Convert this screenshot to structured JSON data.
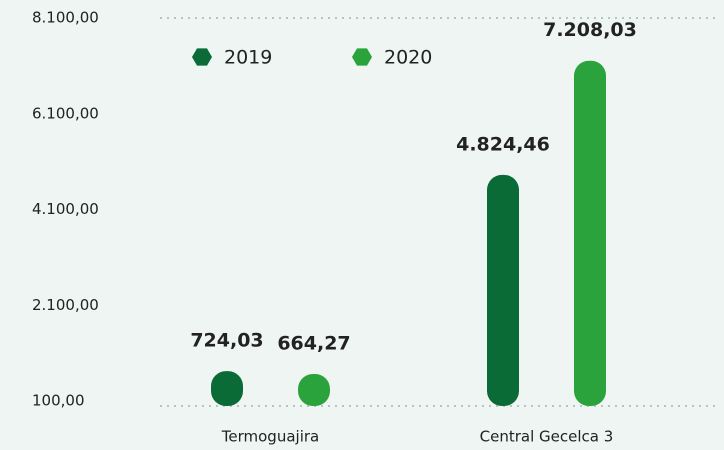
{
  "chart_data": {
    "type": "bar",
    "categories": [
      "Termoguajira",
      "Central Gecelca 3"
    ],
    "series": [
      {
        "name": "2019",
        "color": "#0b6b37",
        "values": [
          724.03,
          4824.46
        ],
        "value_labels": [
          "724,03",
          "4.824,46"
        ]
      },
      {
        "name": "2020",
        "color": "#2ba33c",
        "values": [
          664.27,
          7208.03
        ],
        "value_labels": [
          "664,27",
          "7.208,03"
        ]
      }
    ],
    "ylim": [
      100,
      8100
    ],
    "yticks": [
      {
        "value": 100,
        "label": "100,00"
      },
      {
        "value": 2100,
        "label": "2.100,00"
      },
      {
        "value": 4100,
        "label": "4.100,00"
      },
      {
        "value": 6100,
        "label": "6.100,00"
      },
      {
        "value": 8100,
        "label": "8.100,00"
      }
    ],
    "grid": false,
    "legend": "top"
  }
}
